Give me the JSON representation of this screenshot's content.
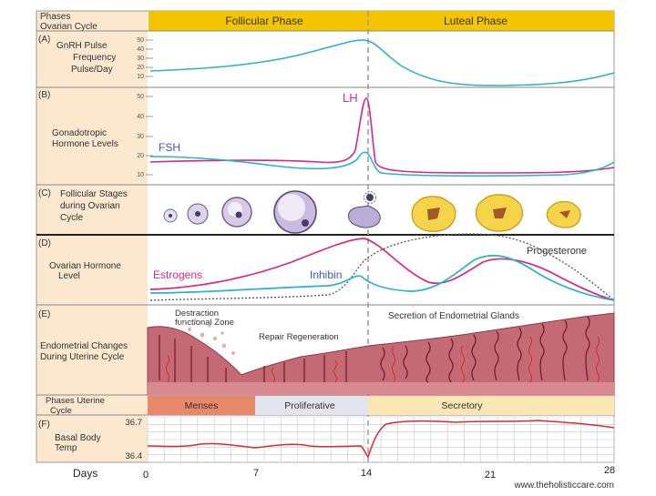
{
  "header": {
    "corner_line1": "Phases",
    "corner_line2": "Ovarian Cycle",
    "follicular": "Follicular Phase",
    "luteal": "Luteal Phase"
  },
  "panel_a": {
    "letter": "(A)",
    "label": [
      "GnRH Pulse",
      "Frequency",
      "Pulse/Day"
    ],
    "ticks": [
      "50",
      "40",
      "30",
      "20",
      "10"
    ]
  },
  "panel_b": {
    "letter": "(B)",
    "label": [
      "Gonadotropic",
      "Hormone Levels"
    ],
    "ticks": [
      "50",
      "40",
      "30",
      "20",
      "10"
    ],
    "lh_label": "LH",
    "fsh_label": "FSH"
  },
  "panel_c": {
    "letter": "(C)",
    "label": [
      "Follicular Stages",
      "during Ovarian",
      "Cycle"
    ]
  },
  "panel_d": {
    "letter": "(D)",
    "label": [
      "Ovarian Hormone",
      "Level"
    ],
    "estrogens_label": "Estrogens",
    "inhibin_label": "Inhibin",
    "progesterone_label": "Progesterone"
  },
  "panel_e": {
    "letter": "(E)",
    "label": [
      "Endometrial Changes",
      "During Uterine Cycle"
    ],
    "destruction": [
      "Destraction",
      "functional Zone"
    ],
    "repair": "Repair Regeneration",
    "secretion": "Secretion of Endometrial Glands"
  },
  "uterine": {
    "label": [
      "Phases Uterine",
      "Cycle"
    ],
    "menses": "Menses",
    "proliferative": "Proliferative",
    "secretory": "Secretory"
  },
  "panel_f": {
    "letter": "(F)",
    "label": [
      "Basal Body",
      "Temp"
    ],
    "high": "36.7",
    "low": "36.4"
  },
  "days": {
    "label": "Days",
    "ticks": [
      "0",
      "7",
      "14",
      "21",
      "28"
    ]
  },
  "watermark": "www.theholisticcare.com",
  "colors": {
    "header_yellow": "#f5c400",
    "label_bg": "#fbe8cf",
    "cyan": "#2ab3c6",
    "magenta": "#d8287f",
    "menses": "#e8886a",
    "proliferative": "#e4e4ee",
    "secretory": "#fbe6b4",
    "tissue": "#c46a74"
  }
}
